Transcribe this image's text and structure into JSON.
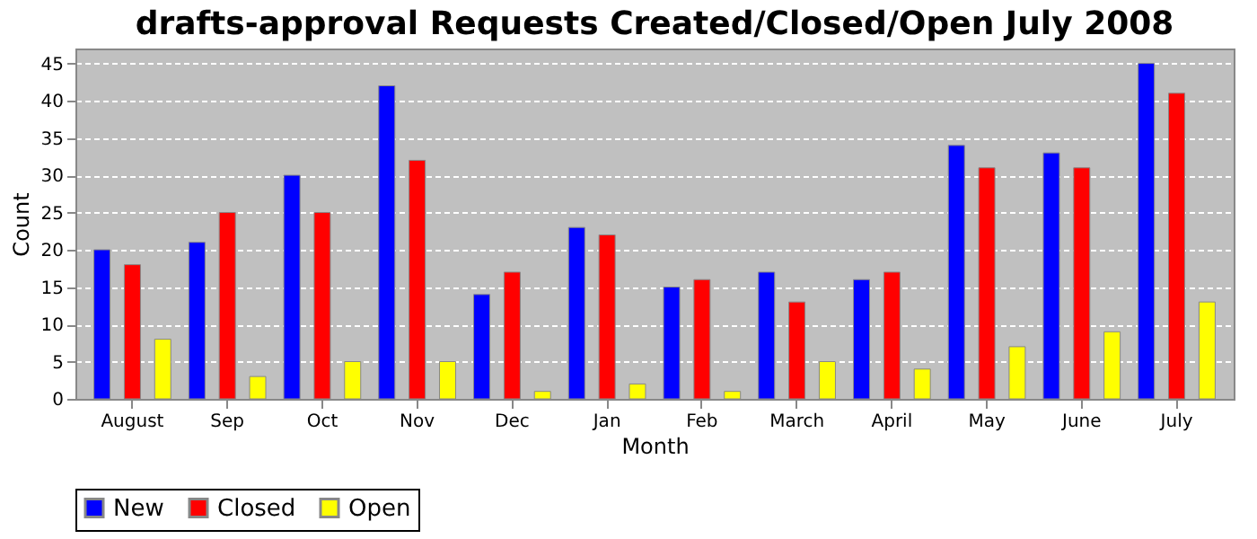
{
  "chart_data": {
    "type": "bar",
    "title": "drafts-approval Requests Created/Closed/Open July 2008",
    "xlabel": "Month",
    "ylabel": "Count",
    "categories": [
      "August",
      "Sep",
      "Oct",
      "Nov",
      "Dec",
      "Jan",
      "Feb",
      "March",
      "April",
      "May",
      "June",
      "July"
    ],
    "series": [
      {
        "name": "New",
        "color": "#0000ff",
        "values": [
          20,
          21,
          30,
          42,
          14,
          23,
          15,
          17,
          16,
          34,
          33,
          45
        ]
      },
      {
        "name": "Closed",
        "color": "#ff0000",
        "values": [
          18,
          25,
          25,
          32,
          17,
          22,
          16,
          13,
          17,
          31,
          31,
          41
        ]
      },
      {
        "name": "Open",
        "color": "#ffff00",
        "values": [
          8,
          3,
          5,
          5,
          1,
          2,
          1,
          5,
          4,
          7,
          9,
          13
        ]
      }
    ],
    "ylim": [
      0,
      47
    ],
    "yticks": [
      0,
      5,
      10,
      15,
      20,
      25,
      30,
      35,
      40,
      45
    ],
    "grid": "y",
    "legend": "bottom"
  }
}
